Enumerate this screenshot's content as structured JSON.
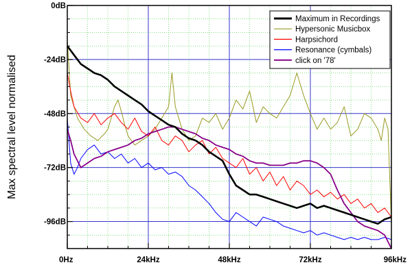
{
  "chart_data": {
    "type": "line",
    "xlabel": "",
    "ylabel": "Max spectral level normalised",
    "xlim": [
      0,
      96
    ],
    "ylim": [
      -108,
      0
    ],
    "x_unit": "kHz",
    "y_unit": "dB",
    "x_ticks": [
      {
        "value": 0,
        "label": "0Hz"
      },
      {
        "value": 24,
        "label": "24kHz"
      },
      {
        "value": 48,
        "label": "48kHz"
      },
      {
        "value": 72,
        "label": "72kHz"
      },
      {
        "value": 96,
        "label": "96kHz"
      }
    ],
    "y_ticks": [
      {
        "value": 0,
        "label": "0dB"
      },
      {
        "value": -24,
        "label": "-24dB"
      },
      {
        "value": -48,
        "label": "-48dB"
      },
      {
        "value": -72,
        "label": "-72dB"
      },
      {
        "value": -96,
        "label": "-96dB"
      }
    ],
    "grid": true,
    "legend_position": "top-right",
    "series": [
      {
        "name": "Maximum in Recordings",
        "color": "#000000",
        "x": [
          0,
          1,
          2,
          4,
          6,
          8,
          10,
          12,
          14,
          16,
          18,
          20,
          22,
          24,
          26,
          28,
          30,
          32,
          34,
          36,
          38,
          40,
          42,
          44,
          46,
          48,
          50,
          52,
          54,
          56,
          58,
          60,
          62,
          64,
          66,
          68,
          70,
          72,
          74,
          76,
          78,
          80,
          82,
          84,
          86,
          88,
          90,
          92,
          94,
          96
        ],
        "y": [
          -18,
          -20,
          -22,
          -26,
          -28,
          -30,
          -31,
          -33,
          -36,
          -38,
          -40,
          -42,
          -44,
          -47,
          -49,
          -51,
          -53,
          -54,
          -57,
          -59,
          -60,
          -62,
          -65,
          -67,
          -69,
          -75,
          -80,
          -82,
          -84,
          -84,
          -85,
          -86,
          -87,
          -88,
          -89,
          -90,
          -89,
          -88,
          -90,
          -89,
          -90,
          -91,
          -92,
          -93,
          -94,
          -95,
          -96,
          -97,
          -95,
          -94
        ]
      },
      {
        "name": "Hypersonic Musicbox",
        "color": "#999922",
        "x": [
          0,
          1,
          3,
          5,
          7,
          9,
          11,
          12,
          13,
          14,
          15,
          16,
          17,
          18,
          20,
          22,
          24,
          26,
          28,
          30,
          31,
          32,
          34,
          36,
          38,
          40,
          42,
          44,
          46,
          48,
          50,
          52,
          54,
          56,
          58,
          60,
          62,
          64,
          66,
          68,
          70,
          72,
          74,
          76,
          78,
          80,
          82,
          84,
          86,
          88,
          90,
          92,
          93,
          94,
          95,
          96
        ],
        "y": [
          -15,
          -40,
          -50,
          -55,
          -58,
          -60,
          -57,
          -55,
          -50,
          -45,
          -42,
          -47,
          -53,
          -58,
          -62,
          -60,
          -58,
          -55,
          -50,
          -45,
          -30,
          -45,
          -55,
          -60,
          -58,
          -50,
          -52,
          -48,
          -55,
          -50,
          -42,
          -46,
          -38,
          -52,
          -45,
          -48,
          -50,
          -45,
          -40,
          -30,
          -40,
          -48,
          -55,
          -50,
          -55,
          -52,
          -45,
          -58,
          -55,
          -48,
          -50,
          -55,
          -60,
          -50,
          -55,
          -98
        ]
      },
      {
        "name": "Harpsichord",
        "color": "#ff0000",
        "x": [
          0,
          1,
          2,
          4,
          6,
          8,
          10,
          12,
          14,
          16,
          18,
          20,
          22,
          24,
          26,
          28,
          30,
          32,
          34,
          36,
          38,
          40,
          42,
          44,
          46,
          48,
          50,
          52,
          54,
          56,
          58,
          60,
          62,
          64,
          66,
          68,
          70,
          72,
          74,
          76,
          78,
          80,
          82,
          84,
          86,
          88,
          90,
          92,
          94,
          96
        ],
        "y": [
          -30,
          -38,
          -45,
          -50,
          -52,
          -48,
          -53,
          -50,
          -48,
          -52,
          -55,
          -50,
          -56,
          -58,
          -54,
          -60,
          -62,
          -58,
          -60,
          -65,
          -62,
          -60,
          -66,
          -63,
          -68,
          -70,
          -72,
          -68,
          -75,
          -72,
          -78,
          -74,
          -80,
          -76,
          -82,
          -78,
          -80,
          -84,
          -82,
          -85,
          -83,
          -86,
          -84,
          -88,
          -86,
          -90,
          -88,
          -92,
          -90,
          -94
        ]
      },
      {
        "name": "Resonance (cymbals)",
        "color": "#0000ff",
        "x": [
          0,
          1,
          2,
          3,
          4,
          6,
          8,
          10,
          12,
          14,
          16,
          18,
          20,
          22,
          24,
          26,
          28,
          30,
          32,
          34,
          36,
          38,
          40,
          42,
          44,
          46,
          48,
          50,
          52,
          54,
          56,
          58,
          60,
          62,
          64,
          66,
          68,
          70,
          72,
          74,
          76,
          78,
          80,
          82,
          84,
          86,
          88,
          90,
          92,
          94,
          96
        ],
        "y": [
          -50,
          -70,
          -75,
          -72,
          -68,
          -64,
          -62,
          -66,
          -65,
          -68,
          -66,
          -70,
          -68,
          -72,
          -70,
          -73,
          -72,
          -75,
          -74,
          -76,
          -80,
          -82,
          -85,
          -88,
          -92,
          -95,
          -96,
          -92,
          -94,
          -96,
          -98,
          -94,
          -95,
          -96,
          -98,
          -99,
          -100,
          -101,
          -100,
          -102,
          -101,
          -102,
          -103,
          -104,
          -103,
          -104,
          -103,
          -104,
          -104,
          -103,
          -104
        ]
      },
      {
        "name": "click on '78'",
        "color": "#880088",
        "x": [
          0,
          1,
          2,
          4,
          6,
          8,
          10,
          12,
          14,
          16,
          18,
          20,
          22,
          24,
          26,
          28,
          30,
          32,
          34,
          36,
          38,
          40,
          42,
          44,
          46,
          48,
          50,
          52,
          54,
          56,
          58,
          60,
          62,
          64,
          66,
          68,
          70,
          72,
          74,
          76,
          78,
          80,
          82,
          84,
          86,
          88,
          90,
          92,
          94,
          95,
          96
        ],
        "y": [
          -55,
          -60,
          -66,
          -72,
          -70,
          -68,
          -67,
          -65,
          -64,
          -63,
          -62,
          -60,
          -59,
          -57,
          -56,
          -55,
          -54,
          -54,
          -55,
          -56,
          -57,
          -59,
          -60,
          -62,
          -63,
          -64,
          -66,
          -67,
          -69,
          -70,
          -70,
          -71,
          -71,
          -71,
          -70,
          -70,
          -69,
          -69,
          -70,
          -72,
          -75,
          -82,
          -88,
          -92,
          -96,
          -98,
          -99,
          -100,
          -102,
          -105,
          -108
        ]
      }
    ]
  }
}
